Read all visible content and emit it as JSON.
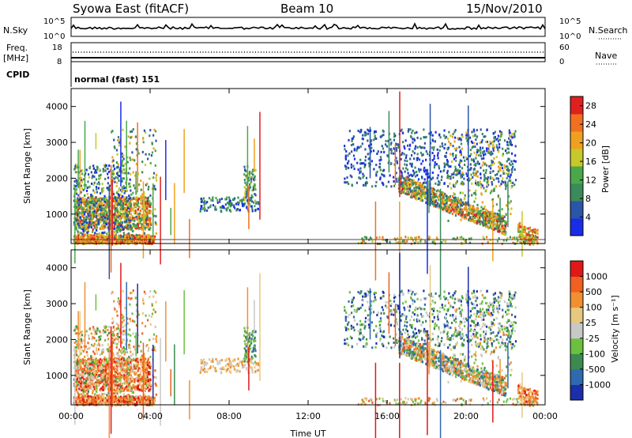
{
  "header": {
    "station": "Syowa East (fitACF)",
    "beam": "Beam 10",
    "date": "15/Nov/2010"
  },
  "panels": {
    "nsky": {
      "label": "N.Sky",
      "ticks": [
        "10^5",
        "10^0"
      ],
      "right_label": "N.Search",
      "right_ticks": [
        "10^5",
        "10^0"
      ]
    },
    "freq": {
      "label_line1": "Freq.",
      "label_line2": "[MHz]",
      "ticks": [
        "18",
        "8"
      ],
      "right_label": "Nave",
      "right_ticks": [
        "60",
        "0"
      ]
    },
    "cpid": {
      "label": "CPID",
      "value": "normal (fast) 151"
    }
  },
  "chart_data": [
    {
      "type": "heatmap",
      "name": "power",
      "ylabel": "Slant Range [km]",
      "xlabel": "",
      "ylim": [
        180,
        4500
      ],
      "y_ticks": [
        1000,
        2000,
        3000,
        4000
      ],
      "colorbar": {
        "label": "Power [dB]",
        "ticks": [
          4,
          8,
          12,
          16,
          20,
          24,
          28
        ],
        "range": [
          0,
          30
        ]
      }
    },
    {
      "type": "heatmap",
      "name": "velocity",
      "ylabel": "Slant Range [km]",
      "xlabel": "Time UT",
      "ylim": [
        180,
        4500
      ],
      "y_ticks": [
        1000,
        2000,
        3000,
        4000
      ],
      "colorbar": {
        "label": "Velocity [m s⁻¹]",
        "ticks": [
          "1000",
          "500",
          "100",
          "25",
          "-25",
          "-100",
          "-500",
          "-1000"
        ]
      }
    }
  ],
  "x_axis": {
    "range_hours": [
      0,
      24
    ],
    "ticks": [
      {
        "hour": 0,
        "label": "00:00"
      },
      {
        "hour": 4,
        "label": "04:00"
      },
      {
        "hour": 8,
        "label": "08:00"
      },
      {
        "hour": 12,
        "label": "12:00"
      },
      {
        "hour": 16,
        "label": "16:00"
      },
      {
        "hour": 20,
        "label": "20:00"
      },
      {
        "hour": 24,
        "label": "00:00"
      }
    ],
    "label": "Time UT"
  },
  "colors": {
    "power_scale": [
      "#1a2de6",
      "#2a55a8",
      "#3a8a5a",
      "#4aa84a",
      "#c8c82a",
      "#f0a020",
      "#f07020",
      "#e02020"
    ],
    "velocity_scale": [
      "#1c2ea8",
      "#2f6ab0",
      "#3c8a50",
      "#6cc040",
      "#c8c8c8",
      "#e8c880",
      "#f09030",
      "#f06020",
      "#e01818"
    ]
  }
}
